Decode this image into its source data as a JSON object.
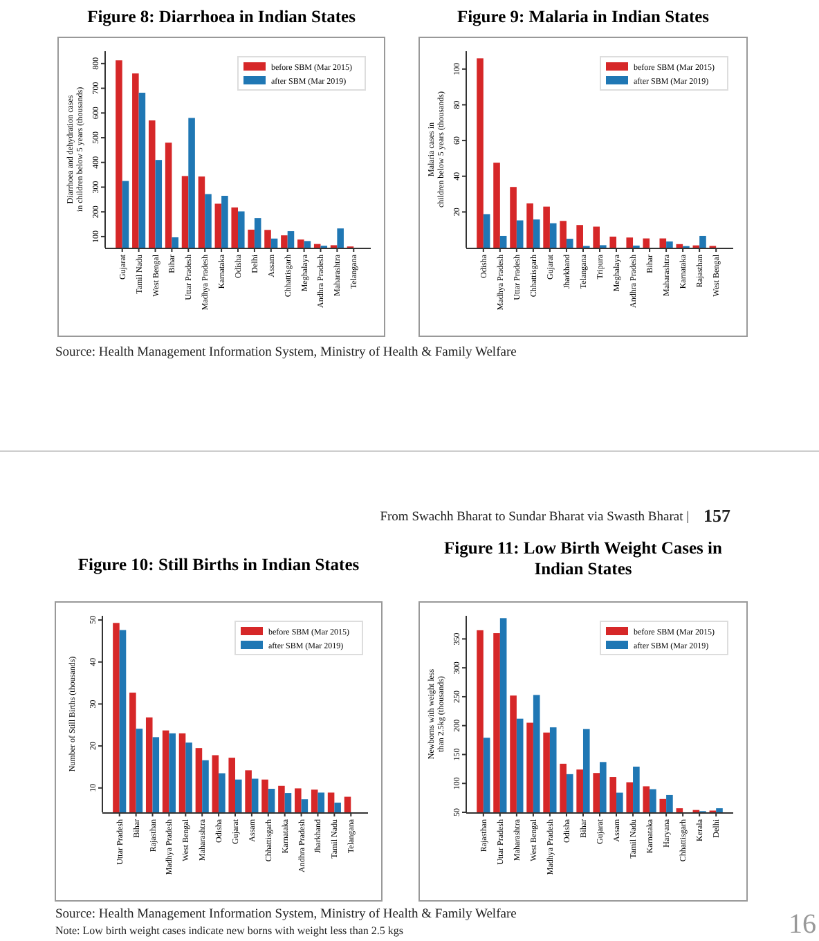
{
  "chart_data": [
    {
      "type": "bar",
      "title": "Figure 8: Diarrhoea in Indian States",
      "ylabel": "Diarrhoea and dehydration cases\nin children below 5 years (thousands)",
      "categories": [
        "Gujarat",
        "Tamil Nadu",
        "West Bengal",
        "Bihar",
        "Uttar Pradesh",
        "Madhya Pradesh",
        "Karnataka",
        "Odisha",
        "Delhi",
        "Assam",
        "Chhattisgarh",
        "Meghalaya",
        "Andhra Pradesh",
        "Maharashtra",
        "Telangana"
      ],
      "ylim": [
        55,
        850
      ],
      "yticks": [
        100,
        200,
        300,
        400,
        500,
        600,
        700,
        800
      ],
      "legend": "top right",
      "grid": false,
      "series": [
        {
          "name": "before SBM (Mar 2015)",
          "color": "#d62728",
          "values": [
            813,
            760,
            570,
            480,
            345,
            343,
            233,
            218,
            128,
            127,
            105,
            88,
            70,
            65,
            60
          ]
        },
        {
          "name": "after SBM (Mar 2019)",
          "color": "#1f77b4",
          "values": [
            325,
            682,
            410,
            97,
            580,
            272,
            265,
            202,
            175,
            92,
            122,
            82,
            63,
            133,
            null
          ]
        }
      ],
      "annotations": [
        "Source: Health Management Information System, Ministry of Health & Family Welfare"
      ]
    },
    {
      "type": "bar",
      "title": "Figure 9: Malaria in Indian States",
      "ylabel": "Malaria cases in\nchildren below 5 years (thousands)",
      "categories": [
        "Odisha",
        "Madhya Pradesh",
        "Uttar Pradesh",
        "Chhattisgarh",
        "Gujarat",
        "Jharkhand",
        "Telangana",
        "Tripura",
        "Meghalaya",
        "Andhra Pradesh",
        "Bihar",
        "Maharashtra",
        "Karnataka",
        "Rajasthan",
        "West Bengal"
      ],
      "ylim": [
        0,
        110
      ],
      "yticks": [
        20,
        40,
        60,
        80,
        100
      ],
      "legend": "top right",
      "grid": false,
      "series": [
        {
          "name": "before SBM (Mar 2015)",
          "color": "#d62728",
          "values": [
            106,
            47.6,
            34,
            24.8,
            23,
            15,
            12.7,
            11.8,
            6.2,
            5.7,
            5.2,
            5.2,
            2,
            1.3,
            1
          ]
        },
        {
          "name": "after SBM (Mar 2019)",
          "color": "#1f77b4",
          "values": [
            18.8,
            6.6,
            15.3,
            15.8,
            13.7,
            5,
            1,
            1.4,
            null,
            1.2,
            null,
            3.5,
            0.9,
            6.6,
            null
          ]
        }
      ]
    },
    {
      "type": "bar",
      "title": "Figure 10: Still Births in Indian States",
      "ylabel": "Number of Still Births (thousands)",
      "categories": [
        "Uttar Pradesh",
        "Bihar",
        "Rajasthan",
        "Madhya Pradesh",
        "West Bengal",
        "Maharashtra",
        "Odisha",
        "Gujarat",
        "Assam",
        "Chhattisgarh",
        "Karnataka",
        "Andhra Pradesh",
        "Jharkhand",
        "Tamil Nadu",
        "Telangana"
      ],
      "ylim": [
        4.2,
        51
      ],
      "yticks": [
        10,
        20,
        30,
        40,
        50
      ],
      "legend": "top right",
      "grid": false,
      "series": [
        {
          "name": "before SBM (Mar 2015)",
          "color": "#d62728",
          "values": [
            49.3,
            32.7,
            26.8,
            23.7,
            23,
            19.5,
            17.8,
            17.2,
            14.2,
            12,
            10.5,
            9.9,
            9.6,
            8.9,
            7.9
          ]
        },
        {
          "name": "after SBM (Mar 2019)",
          "color": "#1f77b4",
          "values": [
            47.6,
            24.1,
            22.1,
            23,
            20.8,
            16.6,
            13.5,
            12,
            12.2,
            9.8,
            8.8,
            7.3,
            8.9,
            6.5,
            null
          ]
        }
      ],
      "annotations": [
        "From Swachh Bharat to Sundar Bharat via Swasth Bharat |",
        "157",
        "Source: Health Management Information System, Ministry of Health & Family Welfare",
        "Note: Low birth weight cases indicate new borns with weight less than 2.5 kgs",
        "16"
      ]
    },
    {
      "type": "bar",
      "title": "Figure 11: Low Birth Weight Cases in Indian States",
      "ylabel": "Newborns with weight less\nthan 2.5kg (thousands)",
      "categories": [
        "Rajasthan",
        "Uttar Pradesh",
        "Maharashtra",
        "West Bengal",
        "Madhya Pradesh",
        "Odisha",
        "Bihar",
        "Gujarat",
        "Assam",
        "Tamil Nadu",
        "Karnataka",
        "Haryana",
        "Chhattisgarh",
        "Kerala",
        "Delhi"
      ],
      "ylim": [
        50,
        390
      ],
      "yticks": [
        50,
        100,
        150,
        200,
        250,
        300,
        350
      ],
      "legend": "top right",
      "grid": false,
      "series": [
        {
          "name": "before SBM (Mar 2015)",
          "color": "#d62728",
          "values": [
            365,
            360,
            252,
            205,
            188,
            134,
            124,
            118,
            111,
            102,
            95,
            73,
            57,
            54,
            53
          ]
        },
        {
          "name": "after SBM (Mar 2019)",
          "color": "#1f77b4",
          "values": [
            179,
            386,
            212,
            253,
            197,
            116,
            194,
            137,
            84,
            129,
            90,
            80,
            null,
            52,
            57
          ]
        }
      ]
    }
  ]
}
